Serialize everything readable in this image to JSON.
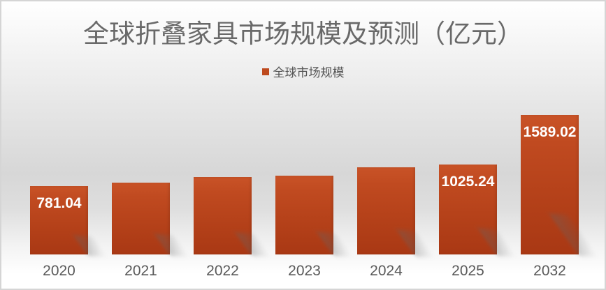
{
  "chart": {
    "title": "全球折叠家具市场规模及预测（亿元）",
    "legend": {
      "label": "全球市场规模",
      "swatch_color": "#be4a1e"
    }
  },
  "chart_data": {
    "type": "bar",
    "title": "全球折叠家具市场规模及预测（亿元）",
    "legend_entries": [
      "全球市场规模"
    ],
    "legend_position": "top",
    "categories": [
      "2020",
      "2021",
      "2022",
      "2023",
      "2024",
      "2025",
      "2032"
    ],
    "values": [
      781.04,
      815,
      880,
      895,
      990,
      1025.24,
      1589.02
    ],
    "data_labels": [
      "781.04",
      "",
      "",
      "",
      "",
      "1025.24",
      "1589.02"
    ],
    "values_estimated_from_pixels": [
      false,
      true,
      true,
      true,
      true,
      false,
      false
    ],
    "xlabel": "",
    "ylabel": "",
    "ylim": [
      0,
      1650
    ],
    "grid": false,
    "axis_visible": false,
    "bar_color": "#bc441c",
    "bar_gradient_top": "#c95327",
    "bar_gradient_bottom": "#a93814",
    "data_label_color": "#ffffff",
    "tick_label_color": "#595959",
    "title_color": "#696969"
  }
}
